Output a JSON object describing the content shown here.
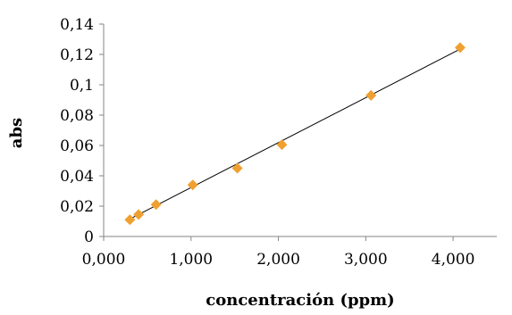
{
  "chart_data": {
    "type": "scatter",
    "title": "",
    "xlabel": "concentración (ppm)",
    "ylabel": "abs",
    "xlim": [
      0,
      4.5
    ],
    "ylim": [
      0,
      0.14
    ],
    "x_ticks": [
      0,
      1,
      2,
      3,
      4
    ],
    "x_tick_labels": [
      "0,000",
      "1,000",
      "2,000",
      "3,000",
      "4,000"
    ],
    "y_ticks": [
      0,
      0.02,
      0.04,
      0.06,
      0.08,
      0.1,
      0.12,
      0.14
    ],
    "y_tick_labels": [
      "0",
      "0,02",
      "0,04",
      "0,06",
      "0,08",
      "0,1",
      "0,12",
      "0,14"
    ],
    "grid": false,
    "legend": "none",
    "series": [
      {
        "marker": "diamond",
        "color": "#F0A030",
        "x": [
          0.3,
          0.4,
          0.6,
          1.02,
          1.53,
          2.04,
          3.06,
          4.08
        ],
        "y": [
          0.011,
          0.0145,
          0.021,
          0.034,
          0.045,
          0.0605,
          0.093,
          0.1245
        ]
      }
    ],
    "trendline": {
      "type": "linear",
      "color": "#000000",
      "x": [
        0.3,
        4.08
      ],
      "y": [
        0.0115,
        0.1235
      ]
    }
  }
}
